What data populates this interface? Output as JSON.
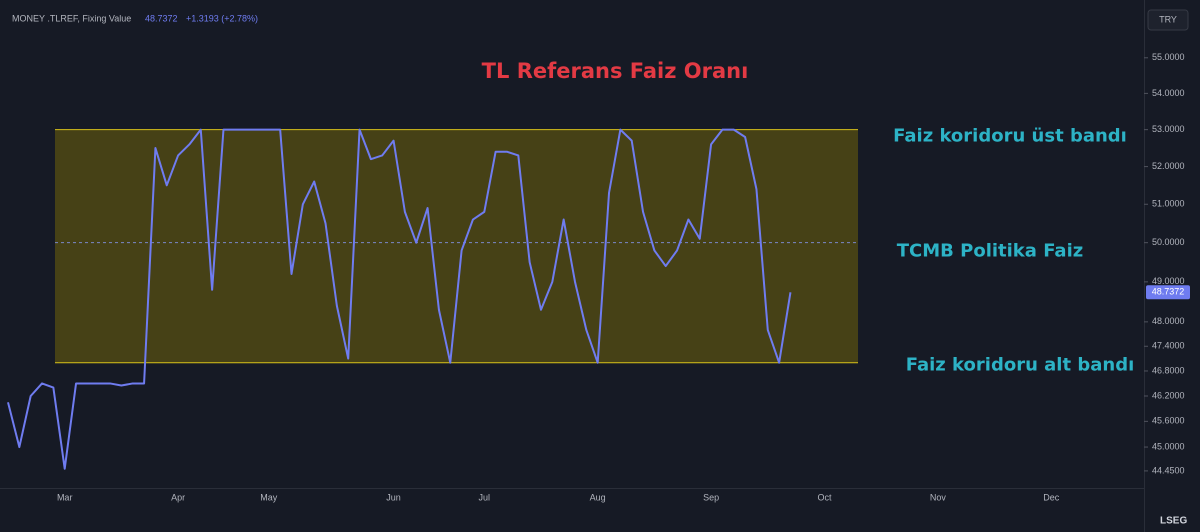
{
  "chart_data": {
    "type": "line",
    "header": "MONEY .TLREF, Fixing Value",
    "change_label": "+1.3193 (+2.78%)",
    "currency": "TRY",
    "logo": "LSEG",
    "title": "TL Referans Faiz Oranı",
    "color": "#6f7cf0",
    "log_scale": true,
    "grid": false,
    "ylim": [
      44.06,
      56.43
    ],
    "yticks": [
      {
        "value": 55,
        "label": "55.0000"
      },
      {
        "value": 54,
        "label": "54.0000"
      },
      {
        "value": 53,
        "label": "53.0000"
      },
      {
        "value": 52,
        "label": "52.0000"
      },
      {
        "value": 51,
        "label": "51.0000"
      },
      {
        "value": 50,
        "label": "50.0000"
      },
      {
        "value": 49,
        "label": "49.0000"
      },
      {
        "value": 48,
        "label": "48.0000"
      },
      {
        "value": 47.4,
        "label": "47.4000"
      },
      {
        "value": 46.8,
        "label": "46.8000"
      },
      {
        "value": 46.2,
        "label": "46.2000"
      },
      {
        "value": 45.6,
        "label": "45.6000"
      },
      {
        "value": 45,
        "label": "45.0000"
      },
      {
        "value": 44.45,
        "label": "44.4500"
      }
    ],
    "categories": [
      null,
      null,
      null,
      null,
      null,
      "Mar",
      null,
      null,
      null,
      null,
      null,
      null,
      null,
      null,
      null,
      "Apr",
      null,
      null,
      null,
      null,
      null,
      null,
      null,
      "May",
      null,
      null,
      null,
      null,
      null,
      null,
      null,
      null,
      null,
      null,
      "Jun",
      null,
      null,
      null,
      null,
      null,
      null,
      null,
      "Jul",
      null,
      null,
      null,
      null,
      null,
      null,
      null,
      null,
      null,
      "Aug",
      null,
      null,
      null,
      null,
      null,
      null,
      null,
      null,
      null,
      "Sep",
      null,
      null,
      null,
      null,
      null,
      null,
      null,
      null,
      null,
      "Oct",
      null,
      null,
      null,
      null,
      null,
      null,
      null,
      null,
      null,
      "Nov",
      null,
      null,
      null,
      null,
      null,
      null,
      null,
      null,
      null,
      "Dec",
      null,
      null,
      null,
      null,
      null,
      null,
      null
    ],
    "values": [
      46.05,
      45.0,
      46.2,
      46.5,
      46.4,
      44.5,
      46.5,
      46.5,
      46.5,
      46.5,
      46.45,
      46.5,
      46.5,
      52.5,
      51.5,
      52.3,
      52.6,
      53.0,
      48.8,
      53.0,
      53.0,
      53.0,
      53.0,
      53.0,
      53.0,
      49.2,
      51.0,
      51.6,
      50.5,
      48.4,
      47.1,
      53.0,
      52.2,
      52.3,
      52.7,
      50.8,
      50.0,
      50.9,
      48.3,
      47.0,
      49.8,
      50.6,
      50.8,
      52.4,
      52.4,
      52.3,
      49.5,
      48.3,
      49.0,
      50.6,
      49.0,
      47.8,
      47.0,
      51.3,
      53.0,
      52.7,
      50.8,
      49.8,
      49.4,
      49.8,
      50.6,
      50.1,
      52.6,
      53.0,
      53.0,
      52.8,
      51.4,
      47.8,
      47.0,
      48.7372,
      null,
      null,
      null,
      null,
      null,
      null,
      null,
      null,
      null,
      null,
      null,
      null,
      null,
      null,
      null,
      null,
      null,
      null,
      null,
      null,
      null,
      null,
      null,
      null,
      null,
      null,
      null,
      null,
      null,
      null
    ],
    "annotations": [
      {
        "text": "Faiz koridoru üst bandı",
        "value": 53
      },
      {
        "text": "TCMB Politika Faiz",
        "value": 50
      },
      {
        "text": "Faiz koridoru alt bandı",
        "value": 47
      }
    ]
  }
}
